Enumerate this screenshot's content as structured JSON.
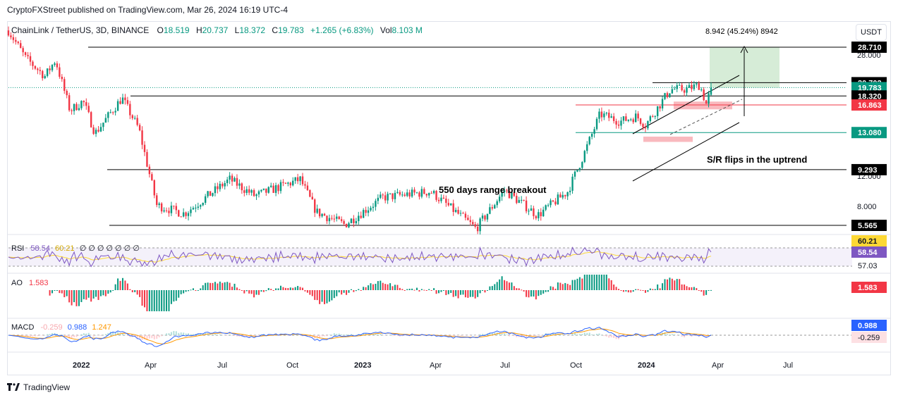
{
  "publisher_line": "CryptoFXStreet published on TradingView.com, Mar 26, 2024 16:19 UTC-4",
  "header": {
    "symbol": "ChainLink / TetherUS, 3D, BINANCE",
    "o_label": "O",
    "o": "18.519",
    "h_label": "H",
    "h": "20.737",
    "l_label": "L",
    "l": "18.372",
    "c_label": "C",
    "c": "19.783",
    "change": "+1.265 (+6.83%)",
    "vol_label": "Vol",
    "vol": "8.103 M"
  },
  "unit_button": "USDT",
  "footer_brand": "TradingView",
  "colors": {
    "up": "#089981",
    "down": "#f23645",
    "black": "#000000",
    "rsi": "#7e57c2",
    "rsi_ma": "#fdd835",
    "macd": "#2962ff",
    "signal": "#ff9800",
    "target_box": "#c8e6c9",
    "red_zone": "#f7a8ae"
  },
  "chart_data": [
    {
      "type": "candlestick",
      "pane": "price",
      "title": "ChainLink / TetherUS, 3D, BINANCE",
      "x_ticks": [
        "2022",
        "Apr",
        "Jul",
        "Oct",
        "2023",
        "Apr",
        "Jul",
        "Oct",
        "2024",
        "Apr",
        "Jul"
      ],
      "y_ticks": [
        "28.000",
        "24.000",
        "12.000",
        "8.000"
      ],
      "y_scale": "log",
      "ylim": [
        4.9,
        31
      ],
      "current_price": 19.783,
      "levels": [
        {
          "label": "28.710",
          "value": 28.71,
          "color": "#000000"
        },
        {
          "label": "20.702",
          "value": 20.702,
          "color": "#000000"
        },
        {
          "label": "19.783",
          "value": 19.783,
          "color": "#089981"
        },
        {
          "label": "18.320",
          "value": 18.32,
          "color": "#000000"
        },
        {
          "label": "16.863",
          "value": 16.863,
          "color": "#f23645"
        },
        {
          "label": "13.080",
          "value": 13.08,
          "color": "#089981"
        },
        {
          "label": "9.293",
          "value": 9.293,
          "color": "#000000"
        },
        {
          "label": "5.565",
          "value": 5.565,
          "color": "#000000"
        }
      ],
      "annotations": {
        "range_breakout": "550 days range breakout",
        "sr_flip": "S/R flips in the uptrend",
        "target": "8.942 (45.24%) 8942"
      },
      "series_anchors": [
        {
          "date": "2021-11-10",
          "close": 33.5
        },
        {
          "date": "2021-12-01",
          "close": 26.0
        },
        {
          "date": "2021-12-25",
          "close": 22.0
        },
        {
          "date": "2022-01-07",
          "close": 25.5
        },
        {
          "date": "2022-01-25",
          "close": 16.0
        },
        {
          "date": "2022-02-10",
          "close": 17.5
        },
        {
          "date": "2022-02-25",
          "close": 13.0
        },
        {
          "date": "2022-03-30",
          "close": 18.0
        },
        {
          "date": "2022-04-20",
          "close": 13.5
        },
        {
          "date": "2022-05-12",
          "close": 6.7
        },
        {
          "date": "2022-06-15",
          "close": 6.2
        },
        {
          "date": "2022-08-10",
          "close": 8.5
        },
        {
          "date": "2022-09-10",
          "close": 7.3
        },
        {
          "date": "2022-11-05",
          "close": 8.5
        },
        {
          "date": "2022-11-25",
          "close": 6.3
        },
        {
          "date": "2022-12-30",
          "close": 5.6
        },
        {
          "date": "2023-02-15",
          "close": 7.2
        },
        {
          "date": "2023-04-15",
          "close": 7.6
        },
        {
          "date": "2023-06-10",
          "close": 5.4
        },
        {
          "date": "2023-07-15",
          "close": 7.7
        },
        {
          "date": "2023-08-25",
          "close": 6.1
        },
        {
          "date": "2023-10-01",
          "close": 7.6
        },
        {
          "date": "2023-10-20",
          "close": 10.5
        },
        {
          "date": "2023-11-10",
          "close": 15.5
        },
        {
          "date": "2023-12-05",
          "close": 14.5
        },
        {
          "date": "2023-12-25",
          "close": 15.2
        },
        {
          "date": "2024-01-05",
          "close": 14.0
        },
        {
          "date": "2024-02-05",
          "close": 19.5
        },
        {
          "date": "2024-02-25",
          "close": 19.5
        },
        {
          "date": "2024-03-12",
          "close": 20.3
        },
        {
          "date": "2024-03-20",
          "close": 17.0
        },
        {
          "date": "2024-03-26",
          "close": 19.783
        }
      ]
    },
    {
      "type": "line",
      "pane": "rsi",
      "name": "RSI",
      "rsi": "58.54",
      "rsi_ma": "60.21",
      "placeholders": "∅ ∅ ∅ ∅ ∅ ∅ ∅",
      "y_ticks": [
        "60.21",
        "58.54",
        "57.03"
      ]
    },
    {
      "type": "bar",
      "pane": "ao",
      "name": "AO",
      "value": "1.583",
      "header_value": "1.583"
    },
    {
      "type": "line",
      "pane": "macd",
      "name": "MACD",
      "hist": "-0.259",
      "macd": "0.988",
      "signal": "1.247",
      "y_ticks": [
        "0.988",
        "-0.259"
      ]
    }
  ]
}
